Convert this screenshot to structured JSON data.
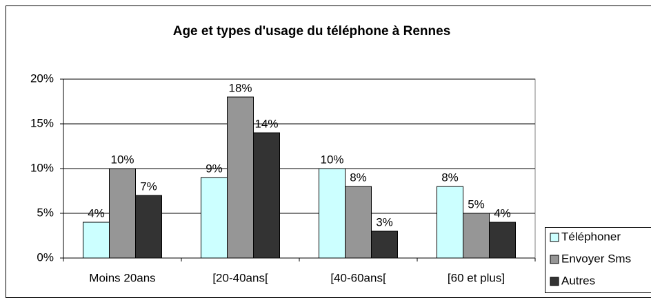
{
  "chart_data": {
    "type": "bar",
    "title": "Age et types d'usage du téléphone à Rennes",
    "categories": [
      "Moins 20ans",
      "[20-40ans[",
      "[40-60ans[",
      "[60 et plus]"
    ],
    "series": [
      {
        "name": "Téléphoner",
        "color": "#ccffff",
        "values": [
          4,
          9,
          10,
          8
        ],
        "value_labels": [
          "4%",
          "9%",
          "10%",
          "8%"
        ]
      },
      {
        "name": "Envoyer Sms",
        "color": "#969696",
        "values": [
          10,
          18,
          8,
          5
        ],
        "value_labels": [
          "10%",
          "18%",
          "8%",
          "5%"
        ]
      },
      {
        "name": "Autres",
        "color": "#333333",
        "values": [
          7,
          14,
          3,
          4
        ],
        "value_labels": [
          "7%",
          "14%",
          "3%",
          "4%"
        ]
      }
    ],
    "ylim": [
      0,
      20
    ],
    "yticks": [
      {
        "value": 0,
        "label": "0%"
      },
      {
        "value": 5,
        "label": "5%"
      },
      {
        "value": 10,
        "label": "10%"
      },
      {
        "value": 15,
        "label": "15%"
      },
      {
        "value": 20,
        "label": "20%"
      }
    ],
    "grid": true,
    "legend": "right"
  }
}
